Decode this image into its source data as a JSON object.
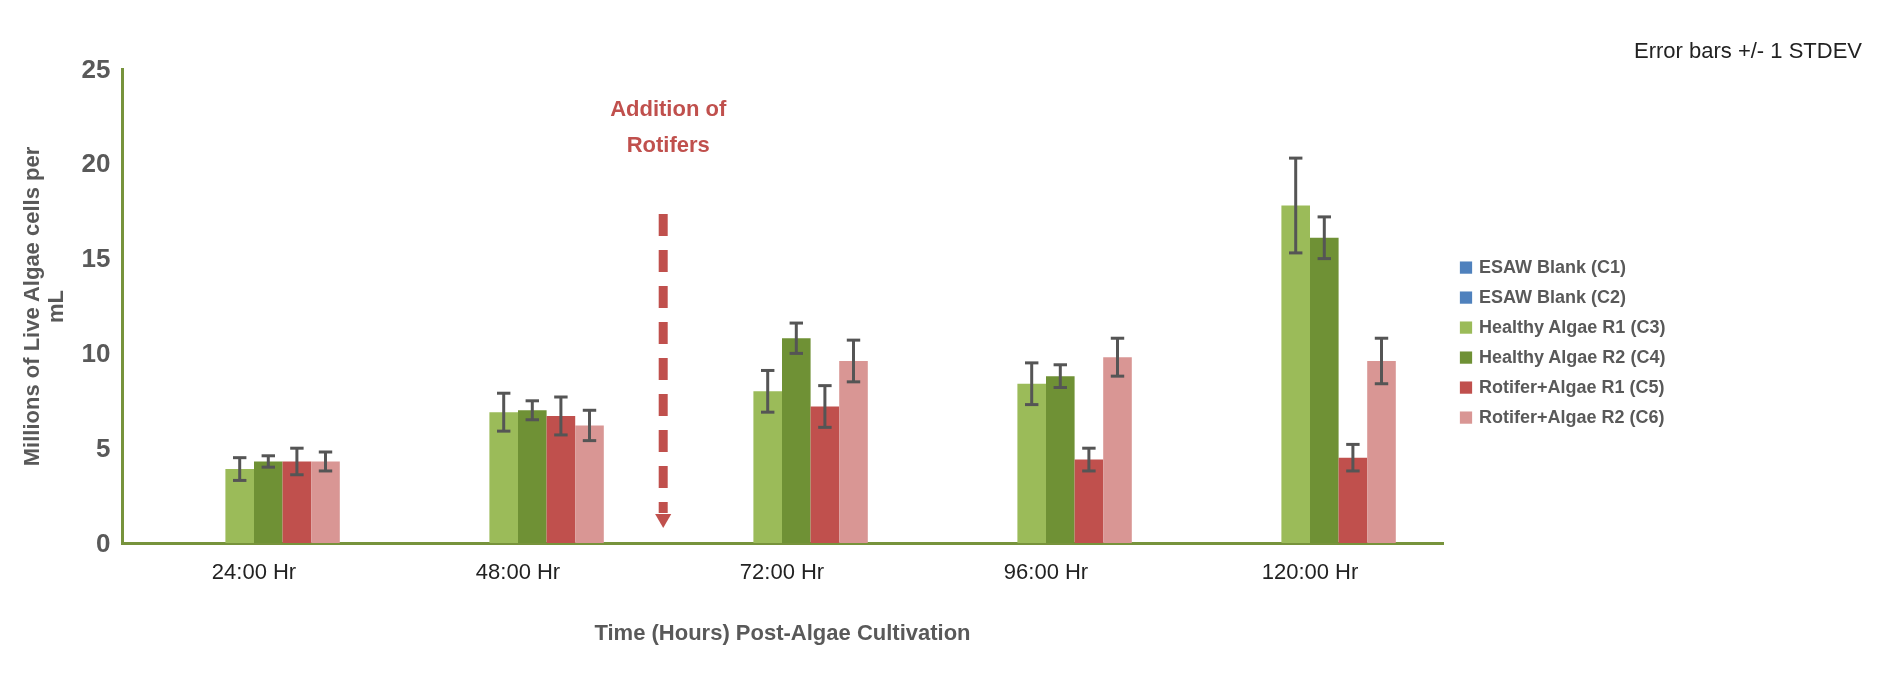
{
  "chart_data": {
    "type": "bar",
    "xlabel": "Time (Hours) Post-Algae Cultivation",
    "ylabel": "Millions of Live Algae cells per mL",
    "categories": [
      "24:00 Hr",
      "48:00 Hr",
      "72:00 Hr",
      "96:00 Hr",
      "120:00 Hr"
    ],
    "series": [
      {
        "name": "ESAW Blank (C1)",
        "color": "#4f81bd",
        "values": [
          0,
          0,
          0,
          0,
          0
        ]
      },
      {
        "name": "ESAW Blank (C2)",
        "color": "#4f81bd",
        "values": [
          0,
          0,
          0,
          0,
          0
        ]
      },
      {
        "name": "Healthy Algae R1 (C3)",
        "color": "#9bbb59",
        "values": [
          3.9,
          6.9,
          8.0,
          8.4,
          17.8
        ],
        "errors": [
          0.6,
          1.0,
          1.1,
          1.1,
          2.5
        ]
      },
      {
        "name": "Healthy Algae R2 (C4)",
        "color": "#6f9135",
        "values": [
          4.3,
          7.0,
          10.8,
          8.8,
          16.1
        ],
        "errors": [
          0.3,
          0.5,
          0.8,
          0.6,
          1.1
        ]
      },
      {
        "name": "Rotifer+Algae R1 (C5)",
        "color": "#c0504d",
        "values": [
          4.3,
          6.7,
          7.2,
          4.4,
          4.5
        ],
        "errors": [
          0.7,
          1.0,
          1.1,
          0.6,
          0.7
        ]
      },
      {
        "name": "Rotifer+Algae R2 (C6)",
        "color": "#d99694",
        "values": [
          4.3,
          6.2,
          9.6,
          9.8,
          9.6
        ],
        "errors": [
          0.5,
          0.8,
          1.1,
          1.0,
          1.2
        ]
      }
    ],
    "ylim": [
      0,
      25
    ],
    "yticks": [
      0,
      5,
      10,
      15,
      20,
      25
    ],
    "grid": false,
    "legend": "right",
    "annotations": [
      "Error bars +/- 1 STDEV",
      "Addition of Rotifers"
    ]
  }
}
